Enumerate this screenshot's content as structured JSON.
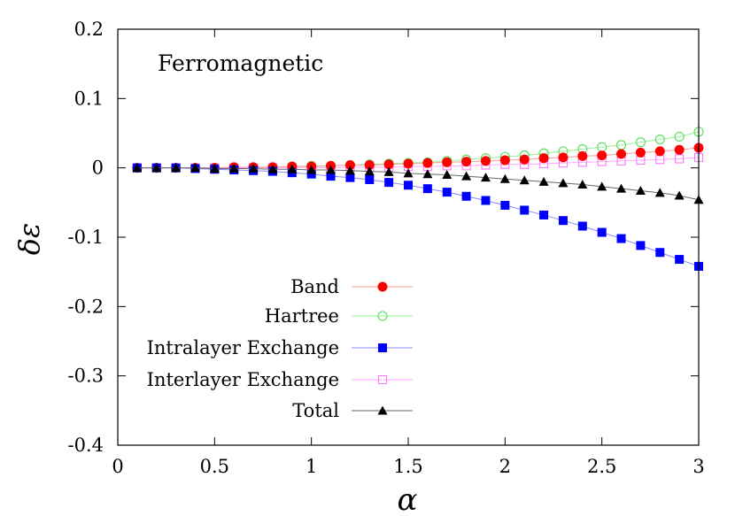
{
  "chart_data": {
    "type": "line",
    "title": "",
    "annotation": "Ferromagnetic",
    "xlabel": "α",
    "ylabel": "δε",
    "xlim": [
      0,
      3
    ],
    "ylim": [
      -0.4,
      0.2
    ],
    "xticks": [
      0,
      0.5,
      1,
      1.5,
      2,
      2.5,
      3
    ],
    "xtick_labels": [
      "0",
      "0.5",
      "1",
      "1.5",
      "2",
      "2.5",
      "3"
    ],
    "yticks": [
      -0.4,
      -0.3,
      -0.2,
      -0.1,
      0,
      0.1,
      0.2
    ],
    "ytick_labels": [
      "-0.4",
      "-0.3",
      "-0.2",
      "-0.1",
      "0",
      "0.1",
      "0.2"
    ],
    "grid": false,
    "legend_position": "lower-center",
    "x": [
      0.1,
      0.2,
      0.3,
      0.4,
      0.5,
      0.6,
      0.7,
      0.8,
      0.9,
      1.0,
      1.1,
      1.2,
      1.3,
      1.4,
      1.5,
      1.6,
      1.7,
      1.8,
      1.9,
      2.0,
      2.1,
      2.2,
      2.3,
      2.4,
      2.5,
      2.6,
      2.7,
      2.8,
      2.9,
      3.0
    ],
    "series": [
      {
        "name": "Band",
        "color": "#ff0000",
        "line_color": "#ff9999",
        "marker": "filled-circle",
        "values": [
          0.0,
          0.0,
          0.0,
          0.0,
          0.0,
          0.001,
          0.001,
          0.001,
          0.002,
          0.002,
          0.003,
          0.004,
          0.004,
          0.005,
          0.006,
          0.007,
          0.008,
          0.009,
          0.01,
          0.011,
          0.012,
          0.014,
          0.015,
          0.017,
          0.018,
          0.02,
          0.022,
          0.024,
          0.026,
          0.029
        ]
      },
      {
        "name": "Hartree",
        "color": "#55dd55",
        "line_color": "#99ee99",
        "marker": "open-circle",
        "values": [
          0.0,
          0.0,
          0.0,
          0.0,
          0.0,
          0.0,
          0.001,
          0.001,
          0.002,
          0.003,
          0.003,
          0.004,
          0.005,
          0.006,
          0.007,
          0.008,
          0.01,
          0.012,
          0.014,
          0.016,
          0.018,
          0.021,
          0.024,
          0.027,
          0.03,
          0.033,
          0.037,
          0.041,
          0.045,
          0.052
        ]
      },
      {
        "name": "Intralayer Exchange",
        "color": "#0000ff",
        "line_color": "#8888ff",
        "marker": "filled-square",
        "values": [
          0.0,
          0.0,
          0.0,
          -0.001,
          -0.002,
          -0.003,
          -0.004,
          -0.005,
          -0.007,
          -0.009,
          -0.012,
          -0.014,
          -0.017,
          -0.021,
          -0.025,
          -0.03,
          -0.035,
          -0.041,
          -0.047,
          -0.054,
          -0.061,
          -0.068,
          -0.076,
          -0.084,
          -0.093,
          -0.102,
          -0.112,
          -0.122,
          -0.132,
          -0.142
        ]
      },
      {
        "name": "Interlayer Exchange",
        "color": "#ff77ff",
        "line_color": "#ffaaff",
        "marker": "open-square",
        "values": [
          0.0,
          0.0,
          0.0,
          0.0,
          0.0,
          0.0,
          0.0,
          0.0,
          0.0,
          0.0,
          0.0,
          0.001,
          0.001,
          0.001,
          0.002,
          0.002,
          0.003,
          0.003,
          0.004,
          0.005,
          0.005,
          0.006,
          0.007,
          0.008,
          0.009,
          0.01,
          0.011,
          0.012,
          0.013,
          0.015
        ]
      },
      {
        "name": "Total",
        "color": "#000000",
        "line_color": "#666666",
        "marker": "filled-triangle",
        "values": [
          0.0,
          0.0,
          0.0,
          0.0,
          -0.001,
          -0.001,
          -0.001,
          -0.002,
          -0.002,
          -0.003,
          -0.003,
          -0.004,
          -0.005,
          -0.006,
          -0.008,
          -0.009,
          -0.01,
          -0.012,
          -0.014,
          -0.016,
          -0.018,
          -0.02,
          -0.022,
          -0.024,
          -0.027,
          -0.03,
          -0.033,
          -0.036,
          -0.04,
          -0.046
        ]
      }
    ]
  }
}
